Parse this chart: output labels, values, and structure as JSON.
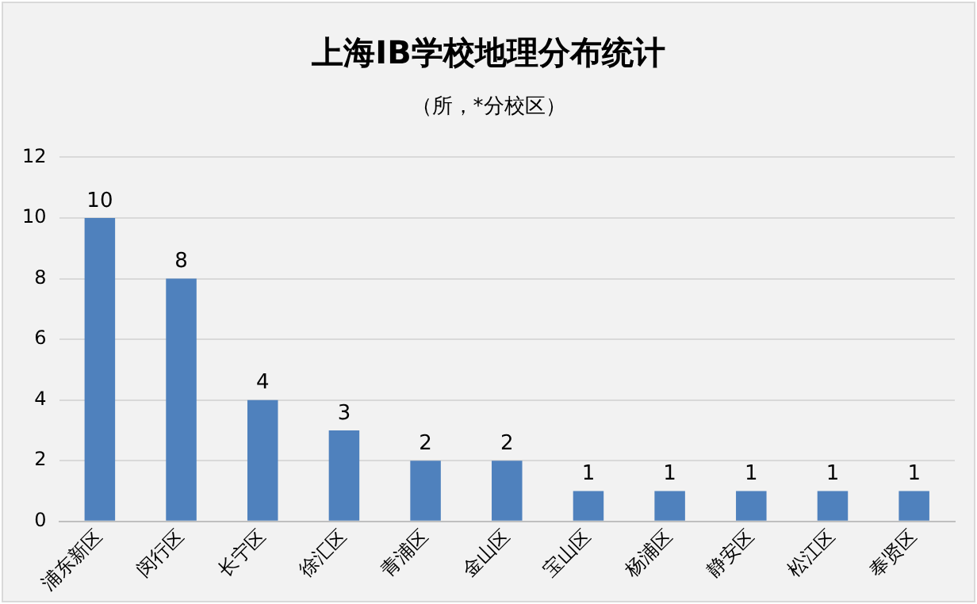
{
  "chart_data": {
    "type": "bar",
    "title": "上海IB学校地理分布统计",
    "subtitle": "（所，*分校区）",
    "categories": [
      "浦东新区",
      "闵行区",
      "长宁区",
      "徐汇区",
      "青浦区",
      "金山区",
      "宝山区",
      "杨浦区",
      "静安区",
      "松江区",
      "奉贤区"
    ],
    "values": [
      10,
      8,
      4,
      3,
      2,
      2,
      1,
      1,
      1,
      1,
      1
    ],
    "color": "#4f81bd",
    "ylim": [
      0,
      12
    ],
    "yticks": [
      0,
      2,
      4,
      6,
      8,
      10,
      12
    ],
    "grid": "y",
    "data_labels": true
  }
}
